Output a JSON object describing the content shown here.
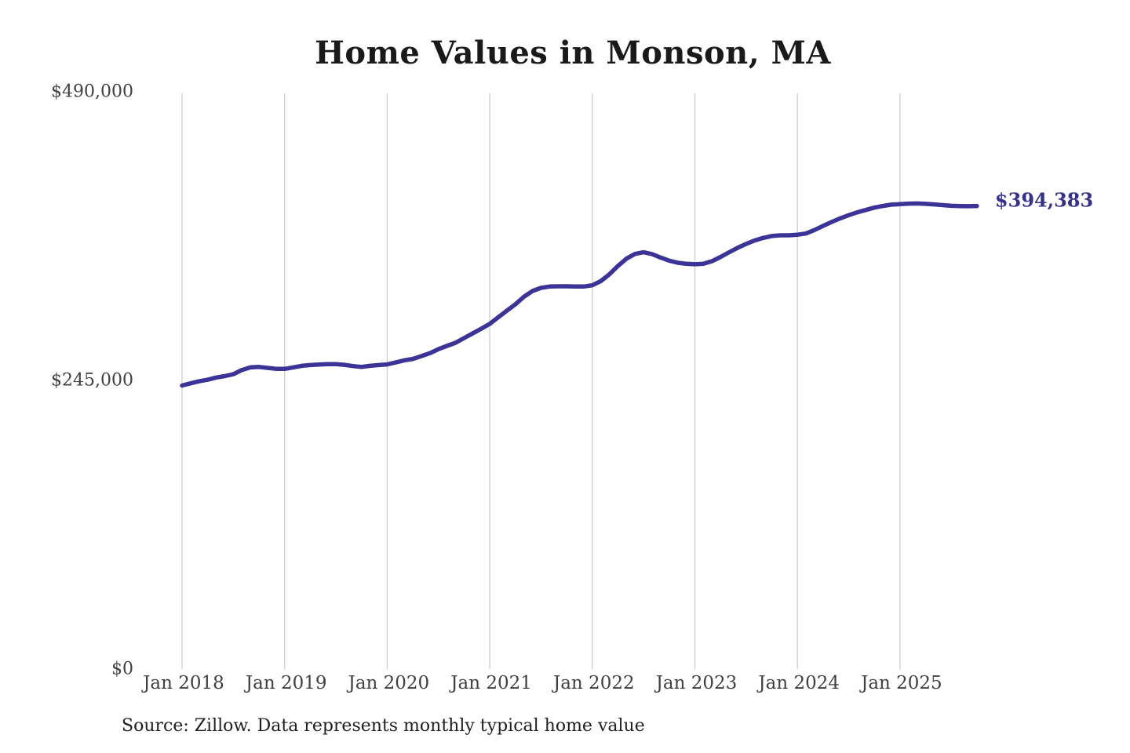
{
  "chart": {
    "title": "Home Values in Monson, MA",
    "source": "Source: Zillow. Data represents monthly typical home value",
    "end_label": "$394,383"
  },
  "colors": {
    "line": "#3b3397",
    "end_label_text": "#34308e",
    "gridline": "#cccccc",
    "axis_text": "#404040",
    "title_text": "#1a1a1a",
    "background": "#ffffff"
  },
  "chart_data": {
    "type": "line",
    "title": "Home Values in Monson, MA",
    "xlabel": "",
    "ylabel": "",
    "x_interval": "monthly",
    "x_start": "2018-01",
    "x_end": "2025-10",
    "x_tick_labels": [
      "Jan 2018",
      "Jan 2019",
      "Jan 2020",
      "Jan 2021",
      "Jan 2022",
      "Jan 2023",
      "Jan 2024",
      "Jan 2025"
    ],
    "y_ticks": [
      {
        "label": "$0",
        "value": 0
      },
      {
        "label": "$245,000",
        "value": 245000
      },
      {
        "label": "$490,000",
        "value": 490000
      }
    ],
    "ylim": [
      0,
      490000
    ],
    "grid": "vertical-yearly",
    "legend": "none",
    "annotation": {
      "text": "$394,383",
      "attached_to": "last-point"
    },
    "end_value": 394383,
    "series": [
      {
        "name": "Typical home value",
        "values": [
          242000,
          243900,
          245600,
          246900,
          248800,
          250000,
          251600,
          255200,
          257400,
          257800,
          257000,
          256200,
          256100,
          257400,
          258700,
          259400,
          259800,
          260100,
          260100,
          259600,
          258500,
          257800,
          258700,
          259400,
          259900,
          261600,
          263400,
          264600,
          267000,
          269500,
          272900,
          275600,
          278300,
          282300,
          286200,
          290200,
          294300,
          300000,
          305500,
          311000,
          317400,
          322200,
          324900,
          326000,
          326200,
          326200,
          326000,
          326000,
          327100,
          330700,
          336400,
          343500,
          349700,
          353700,
          355100,
          353500,
          350600,
          348000,
          346200,
          345300,
          344900,
          345300,
          347500,
          351100,
          355100,
          358900,
          362200,
          365100,
          367300,
          368900,
          369500,
          369500,
          370000,
          371000,
          374000,
          377500,
          380800,
          383900,
          386600,
          389000,
          391000,
          393000,
          394400,
          395500,
          395900,
          396400,
          396500,
          396200,
          395700,
          395100,
          394500,
          394300,
          394200,
          394383
        ]
      }
    ]
  }
}
